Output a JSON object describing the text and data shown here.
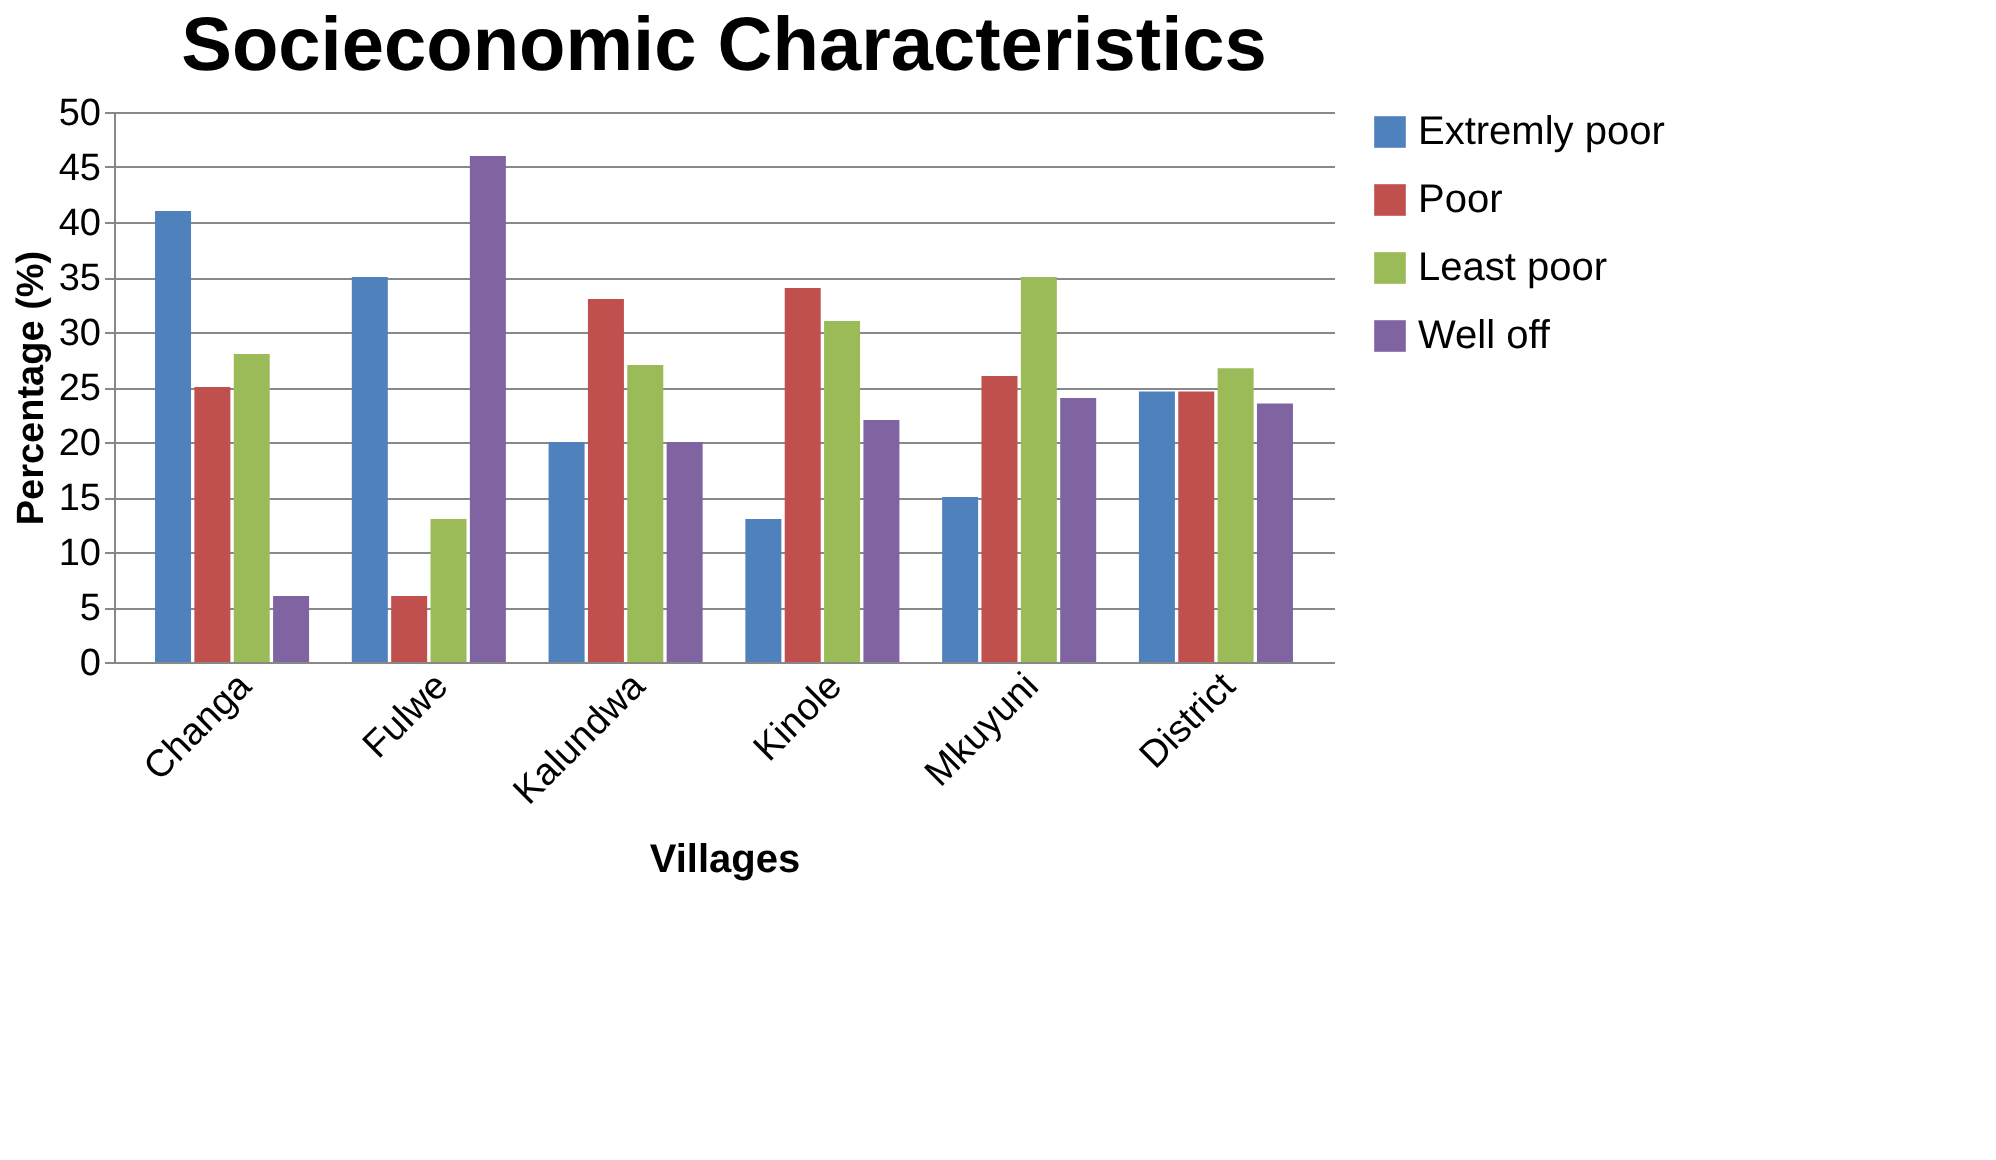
{
  "chart_data": {
    "type": "bar",
    "title": "Socieconomic Characteristics",
    "xlabel": "Villages",
    "ylabel": "Percentage (%)",
    "categories": [
      "Changa",
      "Fulwe",
      "Kalundwa",
      "Kinole",
      "Mkuyuni",
      "District"
    ],
    "series": [
      {
        "name": "Extremly poor",
        "color": "#4f81bd",
        "values": [
          41,
          35,
          20,
          13,
          15,
          24.6
        ]
      },
      {
        "name": "Poor",
        "color": "#c0504d",
        "values": [
          25,
          6,
          33,
          34,
          26,
          24.6
        ]
      },
      {
        "name": "Least poor",
        "color": "#9bbb59",
        "values": [
          28,
          13,
          27,
          31,
          35,
          26.7
        ]
      },
      {
        "name": "Well off",
        "color": "#8064a2",
        "values": [
          6,
          46,
          20,
          22,
          24,
          23.5
        ]
      }
    ],
    "ylim": [
      0,
      50
    ],
    "yticks": [
      0,
      5,
      10,
      15,
      20,
      25,
      30,
      35,
      40,
      45,
      50
    ],
    "grid": "y",
    "legend": "right"
  }
}
